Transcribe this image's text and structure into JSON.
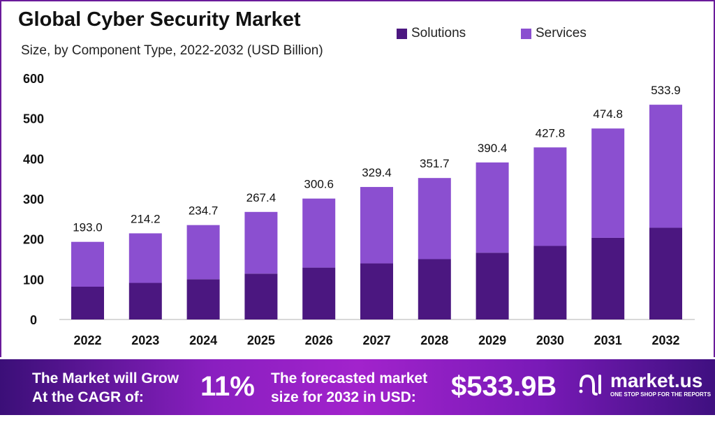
{
  "chart_data": {
    "type": "bar",
    "stacked": true,
    "title": "Global Cyber Security Market",
    "subtitle": "Size, by Component Type, 2022-2032 (USD Billion)",
    "categories": [
      "2022",
      "2023",
      "2024",
      "2025",
      "2026",
      "2027",
      "2028",
      "2029",
      "2030",
      "2031",
      "2032"
    ],
    "series": [
      {
        "name": "Solutions",
        "color": "#4b1780",
        "values": [
          81.5,
          91.0,
          100.0,
          114.0,
          129.0,
          139.5,
          150.0,
          166.0,
          183.0,
          203.0,
          228.0
        ]
      },
      {
        "name": "Services",
        "color": "#8b4fd0",
        "values": [
          111.5,
          123.2,
          134.7,
          153.4,
          171.6,
          189.9,
          201.7,
          224.4,
          244.8,
          271.8,
          305.9
        ]
      }
    ],
    "totals": [
      "193.0",
      "214.2",
      "234.7",
      "267.4",
      "300.6",
      "329.4",
      "351.7",
      "390.4",
      "427.8",
      "474.8",
      "533.9"
    ],
    "ylim": [
      0,
      600
    ],
    "yticks": [
      0,
      100,
      200,
      300,
      400,
      500,
      600
    ],
    "grid": false,
    "legend": "top-right"
  },
  "banner": {
    "grow_text_1": "The Market will Grow",
    "grow_text_2": "At the CAGR of:",
    "cagr": "11%",
    "forecast_text_1": "The forecasted market",
    "forecast_text_2": "size for 2032 in USD:",
    "forecast_value": "$533.9B",
    "logo_name": "market.us",
    "logo_tagline": "ONE STOP SHOP FOR THE REPORTS"
  }
}
